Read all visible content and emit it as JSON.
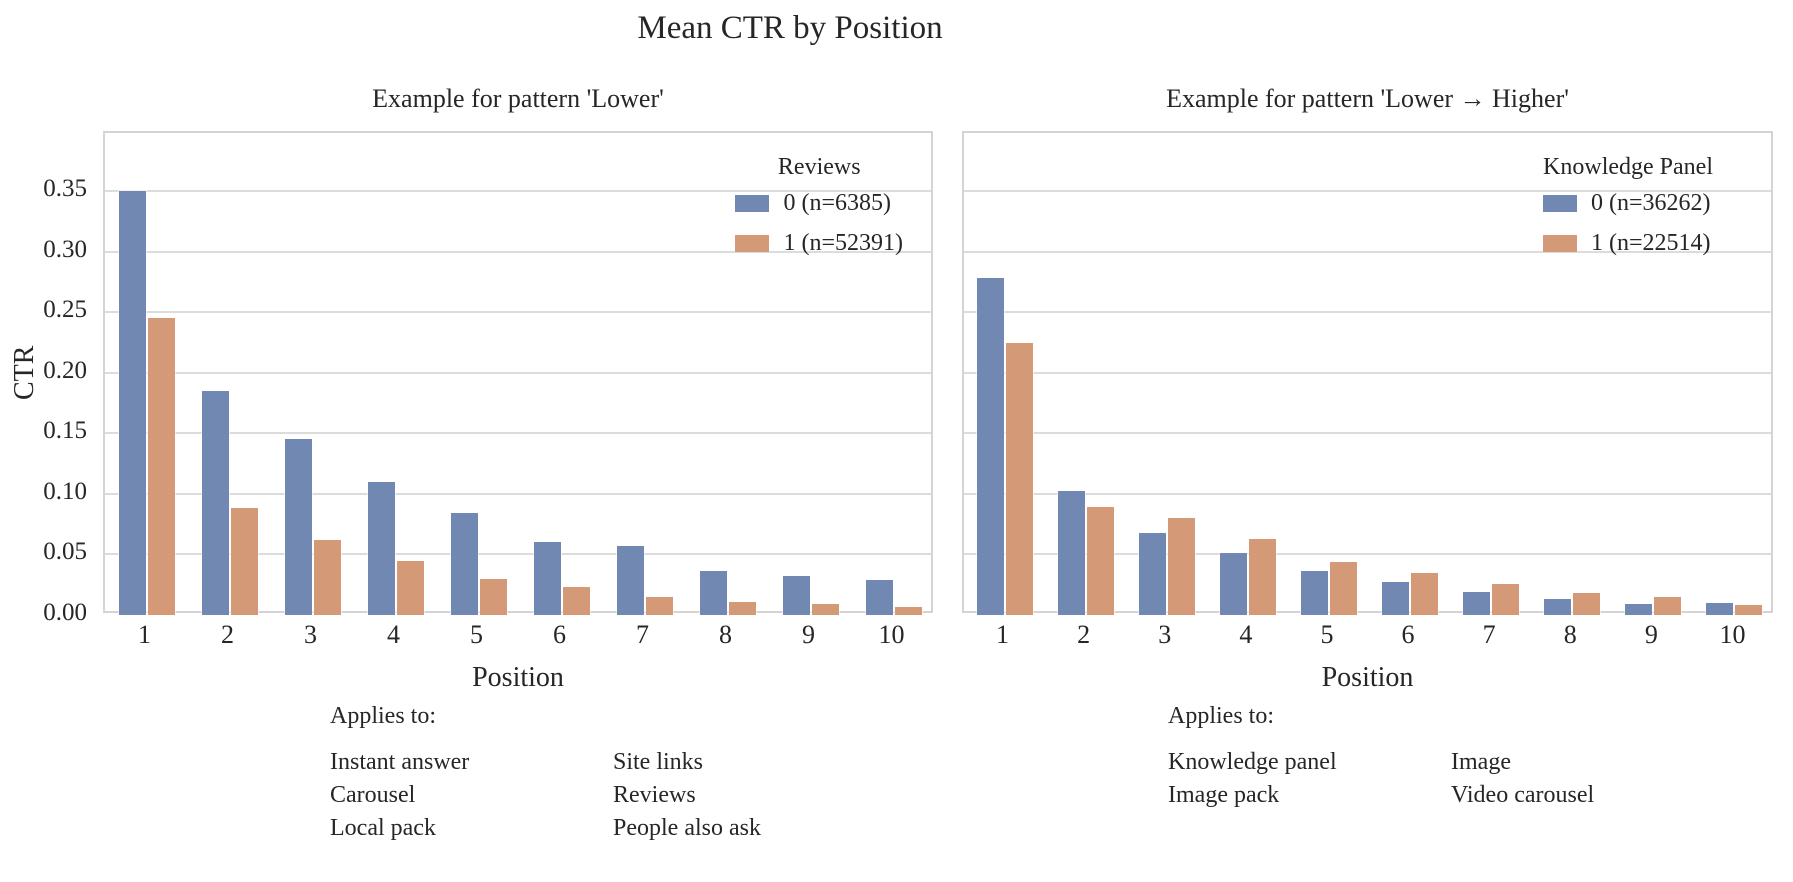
{
  "title": "Mean CTR by Position",
  "colors": {
    "series0": "#7189b2",
    "series1": "#d49977",
    "grid": "#dcdcdc",
    "text": "#262626"
  },
  "chart_data": [
    {
      "type": "bar",
      "title": "Example for pattern 'Lower'",
      "xlabel": "Position",
      "ylabel": "CTR",
      "categories": [
        "1",
        "2",
        "3",
        "4",
        "5",
        "6",
        "7",
        "8",
        "9",
        "10"
      ],
      "series": [
        {
          "name": "0 (n=6385)",
          "color": "#7189b2",
          "values": [
            0.35,
            0.185,
            0.145,
            0.11,
            0.084,
            0.06,
            0.057,
            0.036,
            0.032,
            0.029
          ]
        },
        {
          "name": "1 (n=52391)",
          "color": "#d49977",
          "values": [
            0.245,
            0.088,
            0.062,
            0.045,
            0.03,
            0.023,
            0.015,
            0.011,
            0.009,
            0.007
          ]
        }
      ],
      "legend_title": "Reviews",
      "legend_position": "top-right",
      "grid": true,
      "yticks": [
        0.0,
        0.05,
        0.1,
        0.15,
        0.2,
        0.25,
        0.3,
        0.35
      ],
      "ylim": [
        0,
        0.398
      ],
      "show_y_labels": true,
      "annotation": {
        "header": "Applies to:",
        "columns": [
          [
            "Instant answer",
            "Carousel",
            "Local pack"
          ],
          [
            "Site links",
            "Reviews",
            "People also ask"
          ]
        ]
      }
    },
    {
      "type": "bar",
      "title": "Example for pattern 'Lower → Higher'",
      "xlabel": "Position",
      "ylabel": "CTR",
      "categories": [
        "1",
        "2",
        "3",
        "4",
        "5",
        "6",
        "7",
        "8",
        "9",
        "10"
      ],
      "series": [
        {
          "name": "0 (n=36262)",
          "color": "#7189b2",
          "values": [
            0.278,
            0.102,
            0.068,
            0.051,
            0.036,
            0.027,
            0.019,
            0.013,
            0.009,
            0.01
          ]
        },
        {
          "name": "1 (n=22514)",
          "color": "#d49977",
          "values": [
            0.225,
            0.089,
            0.08,
            0.063,
            0.044,
            0.035,
            0.026,
            0.018,
            0.015,
            0.008
          ]
        }
      ],
      "legend_title": "Knowledge Panel",
      "legend_position": "top-right",
      "grid": true,
      "yticks": [
        0.0,
        0.05,
        0.1,
        0.15,
        0.2,
        0.25,
        0.3,
        0.35
      ],
      "ylim": [
        0,
        0.398
      ],
      "show_y_labels": false,
      "annotation": {
        "header": "Applies to:",
        "columns": [
          [
            "Knowledge panel",
            "Image pack"
          ],
          [
            "Image",
            "Video carousel"
          ]
        ]
      }
    }
  ]
}
